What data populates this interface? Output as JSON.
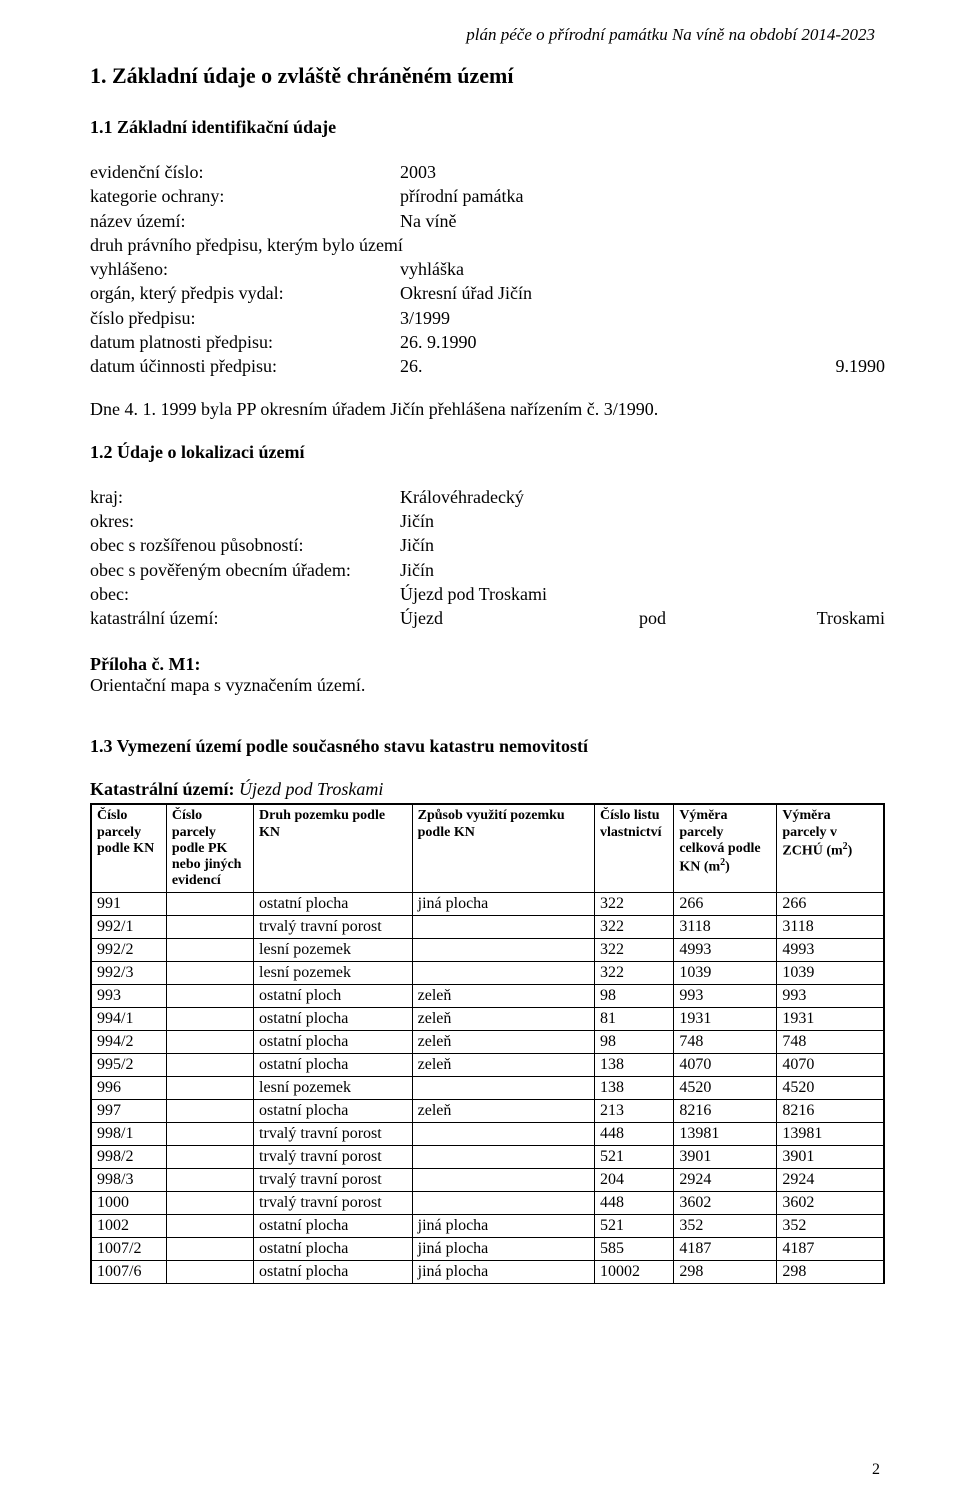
{
  "header": "plán péče o přírodní památku Na víně na období  2014-2023",
  "section1_title": "1. Základní údaje o zvláště chráněném území",
  "section11_title": "1.1 Základní identifikační údaje",
  "fields1": {
    "r0_l": "evidenční číslo:",
    "r0_v": "2003",
    "r1_l": "kategorie ochrany:",
    "r1_v": "přírodní památka",
    "r2_l": "název území:",
    "r2_v": "Na víně",
    "r3_l": "druh právního předpisu, kterým bylo území",
    "r4_l": "vyhlášeno:",
    "r4_v": "vyhláška",
    "r5_l": "orgán, který předpis vydal:",
    "r5_v": "Okresní úřad Jičín",
    "r6_l": "číslo předpisu:",
    "r6_v": "3/1999",
    "r7_l": "datum platnosti předpisu:",
    "r7_v": "26. 9.1990",
    "r8_l": "datum účinnosti předpisu:",
    "r8_v": "26.",
    "r8_end": "9.1990"
  },
  "note": "Dne 4. 1. 1999 byla PP okresním úřadem Jičín přehlášena nařízením č. 3/1990.",
  "section12_title": "1.2 Údaje o lokalizaci území",
  "fields2": {
    "r0_l": "kraj:",
    "r0_v": "Královéhradecký",
    "r1_l": "okres:",
    "r1_v": "Jičín",
    "r2_l": "obec s rozšířenou působností:",
    "r2_v": "Jičín",
    "r3_l": "obec s pověřeným obecním úřadem:",
    "r3_v": "Jičín",
    "r4_l": "obec:",
    "r4_v": "Újezd pod Troskami",
    "r5_l": "katastrální území:",
    "r5_v": "Újezd",
    "r5_mid": "pod",
    "r5_end": "Troskami"
  },
  "attach_title": "Příloha č. M1:",
  "attach_text": "Orientační mapa s vyznačením území.",
  "section13_title": "1.3 Vymezení území podle současného stavu katastru nemovitostí",
  "kat_label": "Katastrální území:",
  "kat_value": "Újezd pod Troskami",
  "table": {
    "columns": [
      "Číslo parcely podle KN",
      "Číslo parcely podle PK nebo jiných evidencí",
      "Druh pozemku podle KN",
      "Způsob využití pozemku podle KN",
      "Číslo listu vlastnictví",
      "Výměra parcely celková podle KN (m²)",
      "Výměra parcely v ZCHÚ (m²)"
    ],
    "col_widths_pct": [
      9.5,
      11,
      20,
      23,
      10,
      13,
      13.5
    ],
    "border_color": "#000000",
    "font_size_header": 14,
    "font_size_body": 16,
    "rows": [
      [
        "991",
        "",
        "ostatní plocha",
        "jiná plocha",
        "322",
        "266",
        "266"
      ],
      [
        "992/1",
        "",
        "trvalý travní porost",
        "",
        "322",
        "3118",
        "3118"
      ],
      [
        "992/2",
        "",
        "lesní pozemek",
        "",
        "322",
        "4993",
        "4993"
      ],
      [
        "992/3",
        "",
        "lesní pozemek",
        "",
        "322",
        "1039",
        "1039"
      ],
      [
        "993",
        "",
        "ostatní ploch",
        "zeleň",
        "98",
        "993",
        "993"
      ],
      [
        "994/1",
        "",
        "ostatní plocha",
        "zeleň",
        "81",
        "1931",
        "1931"
      ],
      [
        "994/2",
        "",
        "ostatní plocha",
        "zeleň",
        "98",
        "748",
        "748"
      ],
      [
        "995/2",
        "",
        "ostatní plocha",
        "zeleň",
        "138",
        "4070",
        "4070"
      ],
      [
        "996",
        "",
        "lesní pozemek",
        "",
        "138",
        "4520",
        "4520"
      ],
      [
        "997",
        "",
        "ostatní plocha",
        "zeleň",
        "213",
        "8216",
        "8216"
      ],
      [
        "998/1",
        "",
        "trvalý travní porost",
        "",
        "448",
        "13981",
        "13981"
      ],
      [
        "998/2",
        "",
        "trvalý travní porost",
        "",
        "521",
        "3901",
        "3901"
      ],
      [
        "998/3",
        "",
        "trvalý travní porost",
        "",
        "204",
        "2924",
        "2924"
      ],
      [
        "1000",
        "",
        "trvalý travní porost",
        "",
        "448",
        "3602",
        "3602"
      ],
      [
        "1002",
        "",
        "ostatní plocha",
        "jiná plocha",
        "521",
        "352",
        "352"
      ],
      [
        "1007/2",
        "",
        "ostatní plocha",
        "jiná plocha",
        "585",
        "4187",
        "4187"
      ],
      [
        "1007/6",
        "",
        "ostatní plocha",
        "jiná plocha",
        "10002",
        "298",
        "298"
      ]
    ]
  },
  "page_number": "2",
  "colors": {
    "text": "#000000",
    "background": "#ffffff"
  },
  "typography": {
    "family": "Times New Roman",
    "body_pt": 18,
    "h1_pt": 22,
    "h2_pt": 18
  }
}
